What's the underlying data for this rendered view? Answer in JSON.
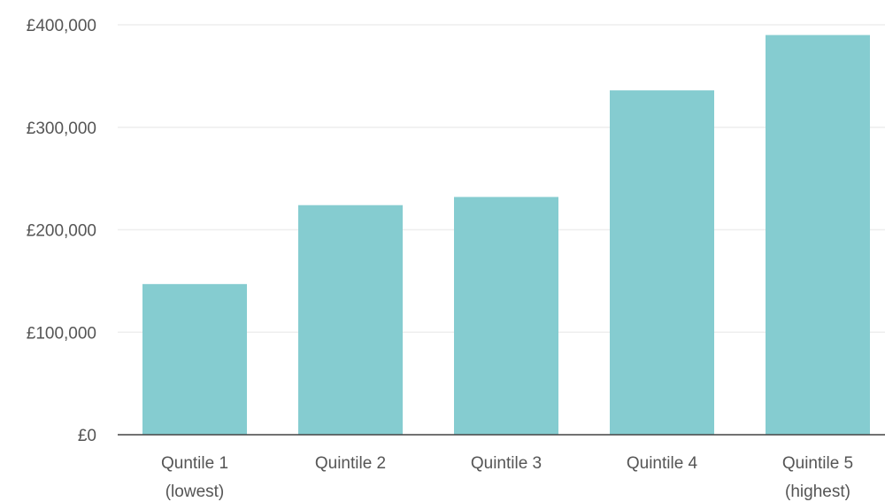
{
  "colors": {
    "bar": "#85CCD0",
    "grid": "#EEEEEE",
    "axis": "#444444",
    "text": "#555555"
  },
  "chart_data": {
    "type": "bar",
    "title": "",
    "xlabel": "",
    "ylabel": "",
    "categories": [
      [
        "Quntile 1",
        "(lowest)"
      ],
      [
        "Quintile 2"
      ],
      [
        "Quintile 3"
      ],
      [
        "Quintile 4"
      ],
      [
        "Quintile 5",
        "(highest)"
      ]
    ],
    "values": [
      147000,
      224000,
      232000,
      336000,
      390000
    ],
    "ylim": [
      0,
      400000
    ],
    "yticks": [
      0,
      100000,
      200000,
      300000,
      400000
    ],
    "ytick_labels": [
      "£0",
      "£100,000",
      "£200,000",
      "£300,000",
      "£400,000"
    ],
    "grid": true,
    "legend": "none"
  }
}
